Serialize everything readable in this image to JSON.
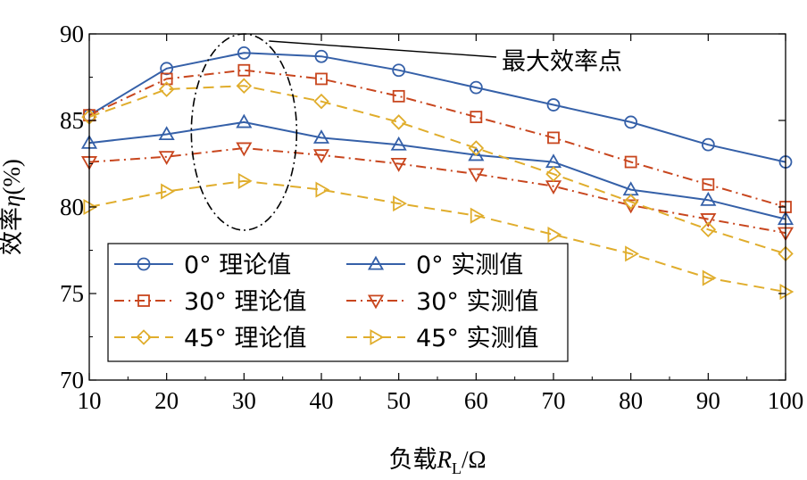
{
  "chart_data": {
    "type": "line",
    "xlabel": {
      "prefix": "负载",
      "var": "R",
      "sub": "L",
      "unit": "/Ω"
    },
    "ylabel": {
      "prefix": "效率",
      "var": "η",
      "unit": "(%)"
    },
    "xlim": [
      10,
      100
    ],
    "ylim": [
      70,
      90
    ],
    "x_ticks": [
      10,
      20,
      30,
      40,
      50,
      60,
      70,
      80,
      90,
      100
    ],
    "y_ticks": [
      70,
      75,
      80,
      85,
      90
    ],
    "x": [
      10,
      20,
      30,
      40,
      50,
      60,
      70,
      80,
      90,
      100
    ],
    "grid": false,
    "legend_position": "bottom-left",
    "annotation": {
      "text": "最大效率点",
      "at_x": 30
    },
    "series": [
      {
        "name": "0° 理论值",
        "color": "#3560a8",
        "dash": "solid",
        "marker": "circle",
        "values": [
          85.3,
          88.0,
          88.9,
          88.7,
          87.9,
          86.9,
          85.9,
          84.9,
          83.6,
          82.6
        ]
      },
      {
        "name": "0° 实测值",
        "color": "#3560a8",
        "dash": "solid",
        "marker": "triangle-up",
        "values": [
          83.7,
          84.2,
          84.9,
          84.0,
          83.6,
          83.0,
          82.6,
          81.0,
          80.4,
          79.3
        ]
      },
      {
        "name": "30° 理论值",
        "color": "#c8461e",
        "dash": "dashdot",
        "marker": "square",
        "values": [
          85.3,
          87.4,
          87.9,
          87.4,
          86.4,
          85.2,
          84.0,
          82.6,
          81.3,
          80.0
        ]
      },
      {
        "name": "30° 实测值",
        "color": "#c8461e",
        "dash": "dashdot",
        "marker": "triangle-down",
        "values": [
          82.6,
          82.9,
          83.4,
          83.0,
          82.5,
          81.9,
          81.2,
          80.1,
          79.3,
          78.5
        ]
      },
      {
        "name": "45° 理论值",
        "color": "#e0ad2c",
        "dash": "dashed",
        "marker": "diamond",
        "values": [
          85.2,
          86.8,
          87.0,
          86.1,
          84.9,
          83.4,
          81.9,
          80.3,
          78.7,
          77.3
        ]
      },
      {
        "name": "45° 实测值",
        "color": "#e0ad2c",
        "dash": "dashed",
        "marker": "triangle-right",
        "values": [
          80.0,
          80.9,
          81.5,
          81.0,
          80.2,
          79.5,
          78.4,
          77.3,
          75.9,
          75.1
        ]
      }
    ]
  }
}
